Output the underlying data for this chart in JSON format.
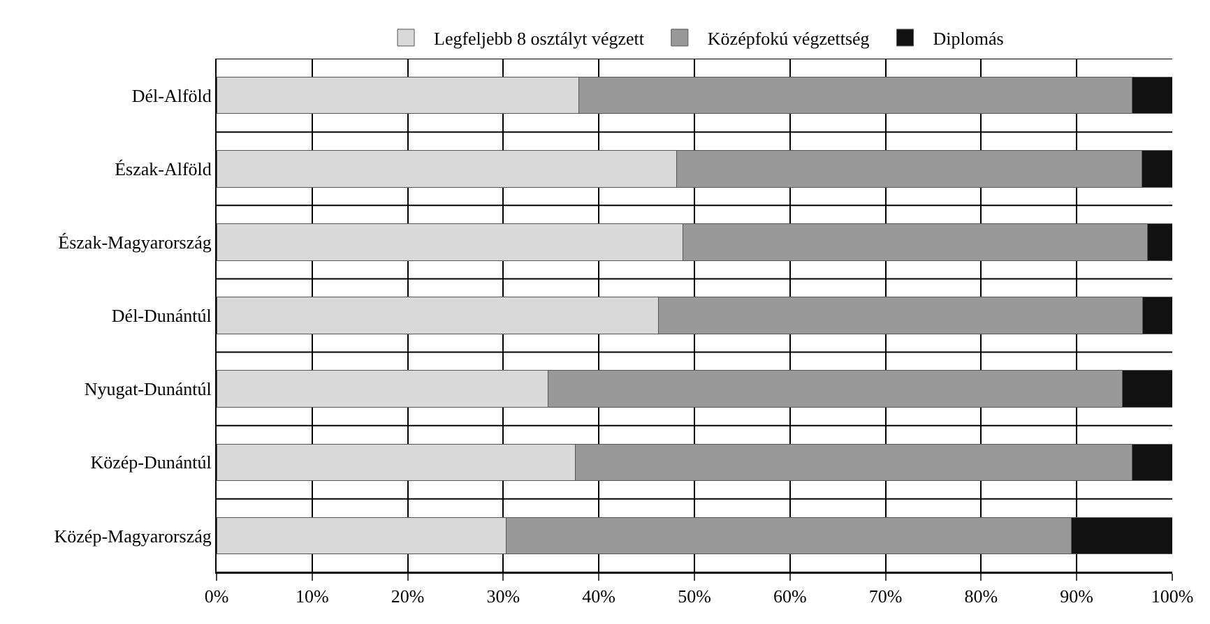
{
  "chart_data": {
    "type": "bar",
    "orientation": "horizontal",
    "stacked": true,
    "grid": true,
    "legend": "top",
    "categories": [
      "Dél-Alföld",
      "Észak-Alföld",
      "Észak-Magyarország",
      "Dél-Dunántúl",
      "Nyugat-Dunántúl",
      "Közép-Dunántúl",
      "Közép-Magyarország"
    ],
    "series": [
      {
        "name": "Legfeljebb 8 osztályt végzett",
        "color": "#d9d9d9",
        "values": [
          37.9,
          48.1,
          48.8,
          46.2,
          34.7,
          37.5,
          30.3
        ]
      },
      {
        "name": "Középfokú végzettség",
        "color": "#999999",
        "values": [
          57.9,
          48.7,
          48.6,
          50.7,
          60.1,
          58.3,
          59.1
        ]
      },
      {
        "name": "Diplomás",
        "color": "#111111",
        "values": [
          4.2,
          3.2,
          2.6,
          3.1,
          5.2,
          4.2,
          10.6
        ]
      }
    ],
    "xlim": [
      0,
      100
    ],
    "xticks": [
      {
        "value": 0,
        "label": "0%"
      },
      {
        "value": 10,
        "label": "10%"
      },
      {
        "value": 20,
        "label": "20%"
      },
      {
        "value": 30,
        "label": "30%"
      },
      {
        "value": 40,
        "label": "40%"
      },
      {
        "value": 50,
        "label": "50%"
      },
      {
        "value": 60,
        "label": "60%"
      },
      {
        "value": 70,
        "label": "70%"
      },
      {
        "value": 80,
        "label": "80%"
      },
      {
        "value": 90,
        "label": "90%"
      },
      {
        "value": 100,
        "label": "100%"
      }
    ]
  }
}
